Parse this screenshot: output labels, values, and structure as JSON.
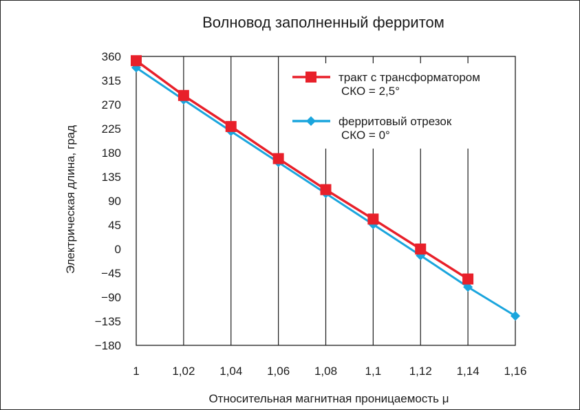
{
  "chart_data": {
    "type": "line",
    "title": "Волновод заполненный ферритом",
    "xlabel": "Относительная магнитная проницаемость μ",
    "ylabel": "Электрическая длина, град",
    "x_ticks": [
      1,
      1.02,
      1.04,
      1.06,
      1.08,
      1.1,
      1.12,
      1.14,
      1.16
    ],
    "x_tick_labels": [
      "1",
      "1,02",
      "1,04",
      "1,06",
      "1,08",
      "1,1",
      "1,12",
      "1,14",
      "1,16"
    ],
    "y_ticks": [
      360,
      315,
      270,
      225,
      180,
      135,
      90,
      45,
      0,
      -45,
      -90,
      -135,
      -180
    ],
    "y_tick_labels": [
      "360",
      "315",
      "270",
      "225",
      "180",
      "135",
      "90",
      "45",
      "0",
      "−45",
      "−90",
      "−135",
      "−180"
    ],
    "xlim": [
      1,
      1.16
    ],
    "ylim": [
      -180,
      360
    ],
    "grid": "vertical",
    "legend_position": "top-right",
    "series": [
      {
        "name": "тракт с трансформатором",
        "note": "СКО = 2,5°",
        "color": "#e8202a",
        "marker": "square",
        "x": [
          1,
          1.02,
          1.04,
          1.06,
          1.08,
          1.1,
          1.12,
          1.14
        ],
        "y": [
          352,
          287,
          229,
          169,
          111,
          56,
          0,
          -56
        ]
      },
      {
        "name": "ферритовый отрезок",
        "note": "СКО = 0°",
        "color": "#1aa5dd",
        "marker": "diamond",
        "x": [
          1,
          1.02,
          1.04,
          1.06,
          1.08,
          1.1,
          1.12,
          1.14,
          1.16
        ],
        "y": [
          339,
          279,
          220,
          162,
          104,
          46,
          -12,
          -71,
          -125
        ]
      }
    ]
  }
}
